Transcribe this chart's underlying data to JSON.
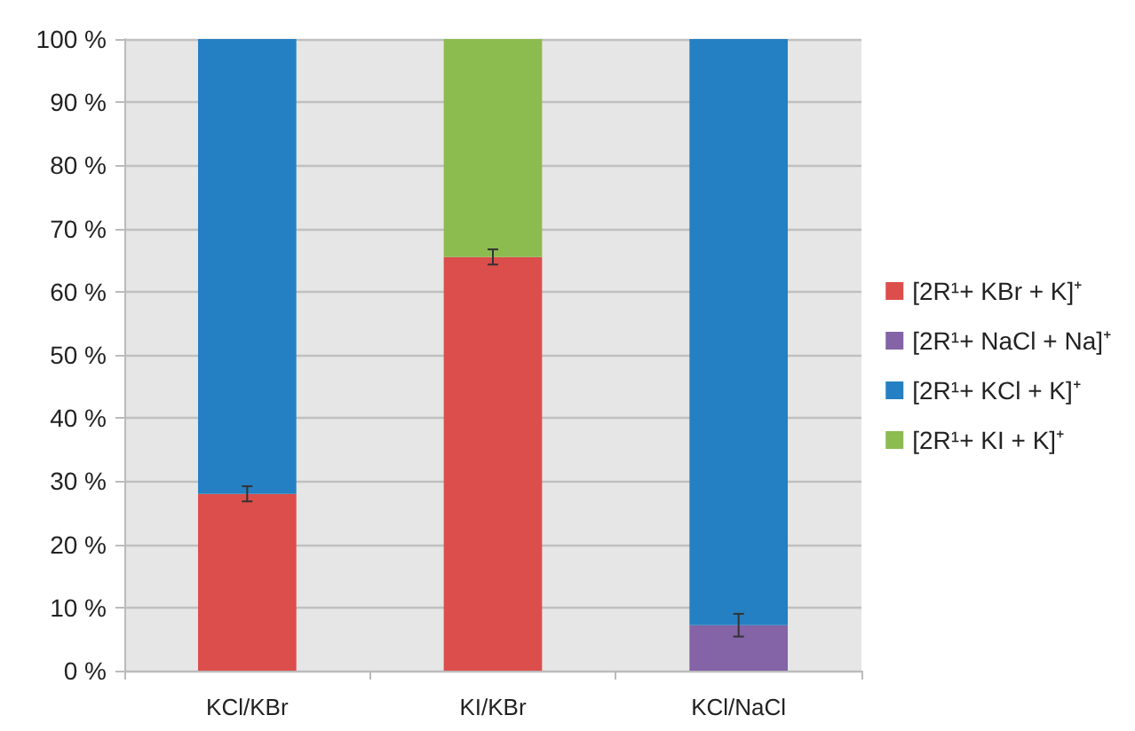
{
  "chart_data": {
    "type": "bar",
    "stacked": true,
    "categories": [
      "KCl/KBr",
      "KI/KBr",
      "KCl/NaCl"
    ],
    "series": [
      {
        "name": "[2R¹+ KBr + K]⁺",
        "color": "#dc4e4b",
        "values": [
          28,
          65.5,
          null
        ],
        "errors": [
          1.2,
          1.2,
          null
        ]
      },
      {
        "name": "[2R¹+ NaCl + Na]⁺",
        "color": "#8463a6",
        "values": [
          null,
          null,
          7.2
        ],
        "errors": [
          null,
          null,
          1.8
        ]
      },
      {
        "name": "[2R¹+ KCl + K]⁺",
        "color": "#2480c2",
        "values": [
          72,
          null,
          92.8
        ]
      },
      {
        "name": "[2R¹+ KI + K]⁺",
        "color": "#8cbb50",
        "values": [
          null,
          34.5,
          null
        ]
      }
    ],
    "ylim": [
      0,
      100
    ],
    "yticks": [
      {
        "value": 0,
        "label": "0 %"
      },
      {
        "value": 10,
        "label": "10 %"
      },
      {
        "value": 20,
        "label": "20 %"
      },
      {
        "value": 30,
        "label": "30 %"
      },
      {
        "value": 40,
        "label": "40 %"
      },
      {
        "value": 50,
        "label": "50 %"
      },
      {
        "value": 60,
        "label": "60 %"
      },
      {
        "value": 70,
        "label": "70 %"
      },
      {
        "value": 80,
        "label": "80 %"
      },
      {
        "value": 90,
        "label": "90 %"
      },
      {
        "value": 100,
        "label": "100 %"
      }
    ],
    "grid": "y",
    "legend": "right"
  }
}
